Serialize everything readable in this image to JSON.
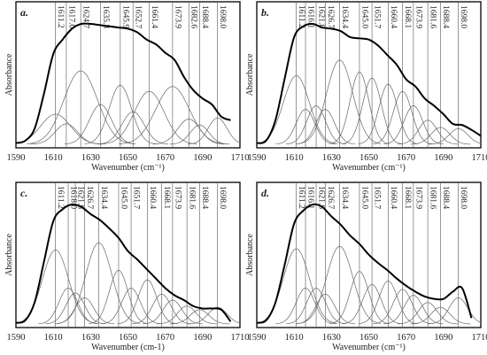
{
  "chart_data": [
    {
      "type": "line",
      "panel_label": "a.",
      "xlabel": "Wavenumber (cm⁻¹)",
      "ylabel": "Absorbance",
      "xlim": [
        1590,
        1710
      ],
      "x_ticks": [
        "1590",
        "1610",
        "1630",
        "1650",
        "1670",
        "1690",
        "1710"
      ],
      "peaks": [
        {
          "label": "1611.2",
          "x": 1611.2,
          "h": 0.25,
          "w": 8
        },
        {
          "label": "1617.0",
          "x": 1617.0,
          "h": 0.17,
          "w": 6
        },
        {
          "label": "1624.7",
          "x": 1624.7,
          "h": 0.61,
          "w": 9
        },
        {
          "label": "1635.3",
          "x": 1635.3,
          "h": 0.33,
          "w": 6
        },
        {
          "label": "1645.9",
          "x": 1645.9,
          "h": 0.49,
          "w": 6
        },
        {
          "label": "1652.7",
          "x": 1652.7,
          "h": 0.27,
          "w": 6
        },
        {
          "label": "1661.4",
          "x": 1661.4,
          "h": 0.44,
          "w": 8
        },
        {
          "label": "1673.9",
          "x": 1673.9,
          "h": 0.48,
          "w": 9
        },
        {
          "label": "1682.6",
          "x": 1682.6,
          "h": 0.21,
          "w": 6
        },
        {
          "label": "1688.4",
          "x": 1688.4,
          "h": 0.16,
          "w": 5
        },
        {
          "label": "1698.0",
          "x": 1698.0,
          "h": 0.22,
          "w": 5
        }
      ],
      "envelope": {
        "x": [
          1590,
          1595,
          1600,
          1605,
          1610,
          1615,
          1620,
          1625,
          1630,
          1635,
          1640,
          1645,
          1650,
          1655,
          1660,
          1665,
          1670,
          1675,
          1680,
          1685,
          1690,
          1695,
          1700,
          1705
        ],
        "y": [
          0.01,
          0.03,
          0.13,
          0.42,
          0.75,
          0.87,
          0.96,
          1.0,
          1.0,
          0.99,
          0.98,
          0.97,
          0.96,
          0.93,
          0.87,
          0.83,
          0.76,
          0.7,
          0.56,
          0.45,
          0.38,
          0.33,
          0.23,
          0.2
        ]
      }
    },
    {
      "type": "line",
      "panel_label": "b.",
      "xlabel": "Wavenumber (cm⁻¹)",
      "ylabel": "Absorbance",
      "xlim": [
        1590,
        1710
      ],
      "x_ticks": [
        "1590",
        "1610",
        "1630",
        "1650",
        "1670",
        "1690",
        "1710"
      ],
      "peaks": [
        {
          "label": "1611.2",
          "x": 1611.2,
          "h": 0.57,
          "w": 7
        },
        {
          "label": "1616.1",
          "x": 1616.1,
          "h": 0.29,
          "w": 5
        },
        {
          "label": "1621.8",
          "x": 1621.8,
          "h": 0.32,
          "w": 5
        },
        {
          "label": "1626.7",
          "x": 1626.7,
          "h": 0.29,
          "w": 5
        },
        {
          "label": "1634.4",
          "x": 1634.4,
          "h": 0.7,
          "w": 7
        },
        {
          "label": "1645.0",
          "x": 1645.0,
          "h": 0.6,
          "w": 5
        },
        {
          "label": "1651.7",
          "x": 1651.7,
          "h": 0.55,
          "w": 5
        },
        {
          "label": "1660.4",
          "x": 1660.4,
          "h": 0.5,
          "w": 5
        },
        {
          "label": "1668.1",
          "x": 1668.1,
          "h": 0.44,
          "w": 5
        },
        {
          "label": "1673.9",
          "x": 1673.9,
          "h": 0.32,
          "w": 5
        },
        {
          "label": "1681.6",
          "x": 1681.6,
          "h": 0.2,
          "w": 5
        },
        {
          "label": "1688.4",
          "x": 1688.4,
          "h": 0.14,
          "w": 5
        },
        {
          "label": "1698.0",
          "x": 1698.0,
          "h": 0.13,
          "w": 5
        }
      ],
      "envelope": {
        "x": [
          1590,
          1595,
          1600,
          1605,
          1610,
          1615,
          1620,
          1625,
          1630,
          1635,
          1640,
          1645,
          1650,
          1655,
          1660,
          1665,
          1670,
          1675,
          1680,
          1685,
          1690,
          1695,
          1700,
          1705,
          1710
        ],
        "y": [
          0.01,
          0.03,
          0.2,
          0.55,
          0.89,
          0.98,
          1.0,
          0.97,
          0.96,
          0.94,
          0.89,
          0.88,
          0.87,
          0.82,
          0.74,
          0.66,
          0.54,
          0.48,
          0.38,
          0.32,
          0.25,
          0.17,
          0.16,
          0.12,
          0.07
        ]
      }
    },
    {
      "type": "line",
      "panel_label": "c.",
      "xlabel": "Wavenumber (cm-1)",
      "ylabel": "Absorbance",
      "xlim": [
        1590,
        1710
      ],
      "x_ticks": [
        "1590",
        "1610",
        "1630",
        "1650",
        "1670",
        "1690",
        "1710"
      ],
      "peaks": [
        {
          "label": "1611.2",
          "x": 1611.2,
          "h": 0.62,
          "w": 7
        },
        {
          "label": "1618.0",
          "x": 1618.0,
          "h": 0.3,
          "w": 5
        },
        {
          "label": "1621.8",
          "x": 1621.8,
          "h": 0.26,
          "w": 5
        },
        {
          "label": "1626.7",
          "x": 1626.7,
          "h": 0.22,
          "w": 5
        },
        {
          "label": "1634.4",
          "x": 1634.4,
          "h": 0.68,
          "w": 7
        },
        {
          "label": "1645.0",
          "x": 1645.0,
          "h": 0.45,
          "w": 5
        },
        {
          "label": "1651.7",
          "x": 1651.7,
          "h": 0.3,
          "w": 5
        },
        {
          "label": "1660.4",
          "x": 1660.4,
          "h": 0.37,
          "w": 5
        },
        {
          "label": "1668.1",
          "x": 1668.1,
          "h": 0.25,
          "w": 5
        },
        {
          "label": "1673.9",
          "x": 1673.9,
          "h": 0.2,
          "w": 5
        },
        {
          "label": "1681.6",
          "x": 1681.6,
          "h": 0.15,
          "w": 5
        },
        {
          "label": "1688.4",
          "x": 1688.4,
          "h": 0.12,
          "w": 5
        },
        {
          "label": "1698.0",
          "x": 1698.0,
          "h": 0.14,
          "w": 5
        }
      ],
      "envelope": {
        "x": [
          1590,
          1595,
          1600,
          1605,
          1610,
          1615,
          1620,
          1625,
          1630,
          1635,
          1640,
          1645,
          1650,
          1655,
          1660,
          1665,
          1670,
          1675,
          1680,
          1685,
          1690,
          1695,
          1700,
          1705
        ],
        "y": [
          0.01,
          0.03,
          0.18,
          0.52,
          0.86,
          0.96,
          1.0,
          0.98,
          0.92,
          0.87,
          0.8,
          0.72,
          0.61,
          0.54,
          0.46,
          0.38,
          0.3,
          0.24,
          0.2,
          0.15,
          0.13,
          0.13,
          0.12,
          0.02
        ]
      }
    },
    {
      "type": "line",
      "panel_label": "d.",
      "xlabel": "Wavenumber (cm⁻¹)",
      "ylabel": "Absorbance",
      "xlim": [
        1590,
        1710
      ],
      "x_ticks": [
        "1590",
        "1610",
        "1630",
        "1650",
        "1670",
        "1690",
        "1710"
      ],
      "peaks": [
        {
          "label": "1611.2",
          "x": 1611.2,
          "h": 0.63,
          "w": 7
        },
        {
          "label": "1616.1",
          "x": 1616.1,
          "h": 0.3,
          "w": 5
        },
        {
          "label": "1621.8",
          "x": 1621.8,
          "h": 0.3,
          "w": 5
        },
        {
          "label": "1626.7",
          "x": 1626.7,
          "h": 0.25,
          "w": 5
        },
        {
          "label": "1634.4",
          "x": 1634.4,
          "h": 0.65,
          "w": 7
        },
        {
          "label": "1645.0",
          "x": 1645.0,
          "h": 0.44,
          "w": 5
        },
        {
          "label": "1651.7",
          "x": 1651.7,
          "h": 0.33,
          "w": 5
        },
        {
          "label": "1660.4",
          "x": 1660.4,
          "h": 0.36,
          "w": 5
        },
        {
          "label": "1668.1",
          "x": 1668.1,
          "h": 0.29,
          "w": 5
        },
        {
          "label": "1673.9",
          "x": 1673.9,
          "h": 0.24,
          "w": 5
        },
        {
          "label": "1681.6",
          "x": 1681.6,
          "h": 0.18,
          "w": 5
        },
        {
          "label": "1688.4",
          "x": 1688.4,
          "h": 0.14,
          "w": 5
        },
        {
          "label": "1698.0",
          "x": 1698.0,
          "h": 0.22,
          "w": 5
        }
      ],
      "envelope": {
        "x": [
          1590,
          1595,
          1600,
          1605,
          1610,
          1615,
          1620,
          1625,
          1630,
          1635,
          1640,
          1645,
          1650,
          1655,
          1660,
          1665,
          1670,
          1675,
          1680,
          1685,
          1690,
          1695,
          1700,
          1705
        ],
        "y": [
          0.01,
          0.03,
          0.18,
          0.5,
          0.84,
          0.95,
          1.0,
          0.98,
          0.9,
          0.83,
          0.74,
          0.67,
          0.58,
          0.51,
          0.45,
          0.38,
          0.32,
          0.27,
          0.23,
          0.21,
          0.21,
          0.27,
          0.3,
          0.05
        ]
      }
    }
  ]
}
